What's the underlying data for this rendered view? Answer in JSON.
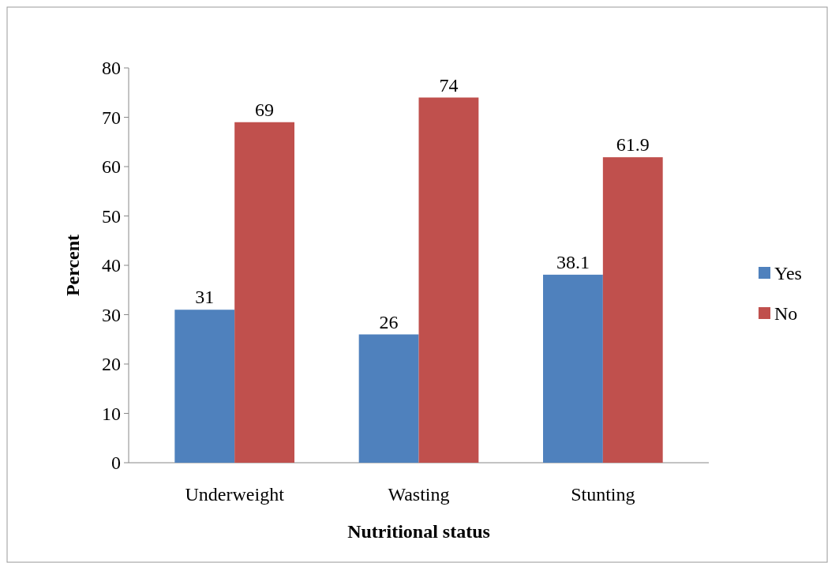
{
  "chart_data": {
    "type": "bar",
    "xlabel": "Nutritional status",
    "ylabel": "Percent",
    "categories": [
      "Underweight",
      "Wasting",
      "Stunting"
    ],
    "series": [
      {
        "name": "Yes",
        "color": "#4f81bd",
        "values": [
          31,
          26,
          38.1
        ]
      },
      {
        "name": "No",
        "color": "#c0504d",
        "values": [
          69,
          74,
          61.9
        ]
      }
    ],
    "ylim": [
      0,
      80
    ],
    "yticks": [
      0,
      10,
      20,
      30,
      40,
      50,
      60,
      70,
      80
    ],
    "data_labels": true,
    "legend": "right",
    "grid": false
  }
}
